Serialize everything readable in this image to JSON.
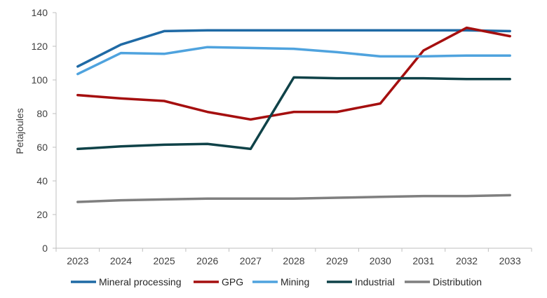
{
  "chart_data": {
    "type": "line",
    "title": "",
    "xlabel": "",
    "ylabel": "Petajoules",
    "ylim": [
      0,
      140
    ],
    "yticks": [
      0,
      20,
      40,
      60,
      80,
      100,
      120,
      140
    ],
    "grid": false,
    "legend_position": "bottom",
    "x": [
      "2023",
      "2024",
      "2025",
      "2026",
      "2027",
      "2028",
      "2029",
      "2030",
      "2031",
      "2032",
      "2033"
    ],
    "series": [
      {
        "name": "Mineral processing",
        "color": "#1f6aa5",
        "values": [
          108,
          121,
          129,
          129.5,
          129.5,
          129.5,
          129.5,
          129.5,
          129.5,
          129.5,
          129
        ]
      },
      {
        "name": "GPG",
        "color": "#a50f0f",
        "values": [
          91,
          89,
          87.5,
          81,
          76.5,
          81,
          81,
          86,
          117.5,
          131,
          126
        ]
      },
      {
        "name": "Mining",
        "color": "#4fa3de",
        "values": [
          103.5,
          116,
          115.5,
          119.5,
          119,
          118.5,
          116.5,
          114,
          114,
          114.5,
          114.5
        ]
      },
      {
        "name": "Industrial",
        "color": "#0f4248",
        "values": [
          59,
          60.5,
          61.5,
          62,
          59,
          101.5,
          101,
          101,
          101,
          100.5,
          100.5
        ]
      },
      {
        "name": "Distribution",
        "color": "#7f7f7f",
        "values": [
          27.5,
          28.5,
          29,
          29.5,
          29.5,
          29.5,
          30,
          30.5,
          31,
          31,
          31.5
        ]
      }
    ]
  }
}
